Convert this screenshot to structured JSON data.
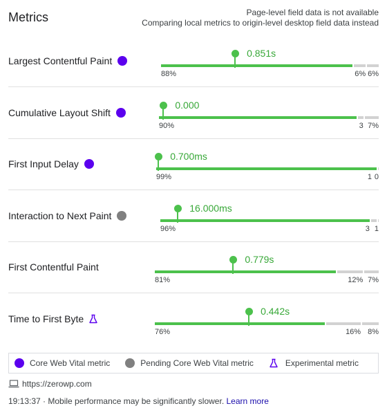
{
  "header": {
    "title": "Metrics",
    "note_line1": "Page-level field data is not available",
    "note_line2": "Comparing local metrics to origin-level desktop field data instead"
  },
  "metrics": [
    {
      "name": "Largest Contentful Paint",
      "type": "core",
      "value": "0.851s",
      "dist": [
        "88%",
        "6%",
        "6%"
      ],
      "fractions": [
        0.88,
        0.06,
        0.06
      ],
      "marker_fraction": 0.34
    },
    {
      "name": "Cumulative Layout Shift",
      "type": "core",
      "value": "0.000",
      "dist": [
        "90%",
        "3",
        "7%"
      ],
      "fractions": [
        0.9,
        0.03,
        0.07
      ],
      "marker_fraction": 0.02
    },
    {
      "name": "First Input Delay",
      "type": "core",
      "value": "0.700ms",
      "dist": [
        "99%",
        "1",
        "0"
      ],
      "fractions": [
        0.99,
        0.01,
        0.0
      ],
      "marker_fraction": 0.01
    },
    {
      "name": "Interaction to Next Paint",
      "type": "pending",
      "value": "16.000ms",
      "dist": [
        "96%",
        "3",
        "1"
      ],
      "fractions": [
        0.96,
        0.03,
        0.01
      ],
      "marker_fraction": 0.08
    },
    {
      "name": "First Contentful Paint",
      "type": "none",
      "value": "0.779s",
      "dist": [
        "81%",
        "12%",
        "7%"
      ],
      "fractions": [
        0.81,
        0.12,
        0.07
      ],
      "marker_fraction": 0.35
    },
    {
      "name": "Time to First Byte",
      "type": "experimental",
      "value": "0.442s",
      "dist": [
        "76%",
        "16%",
        "8%"
      ],
      "fractions": [
        0.76,
        0.16,
        0.08
      ],
      "marker_fraction": 0.42
    }
  ],
  "legend": {
    "core": "Core Web Vital metric",
    "pending": "Pending Core Web Vital metric",
    "experimental": "Experimental metric"
  },
  "url": "https://zerowp.com",
  "footer": {
    "text": "19:13:37 · Mobile performance may be significantly slower.",
    "link": "Learn more"
  },
  "colors": {
    "core": "#5b00ee",
    "pending": "#808080",
    "good": "#4cc14c",
    "grey": "#d2d2d2"
  }
}
